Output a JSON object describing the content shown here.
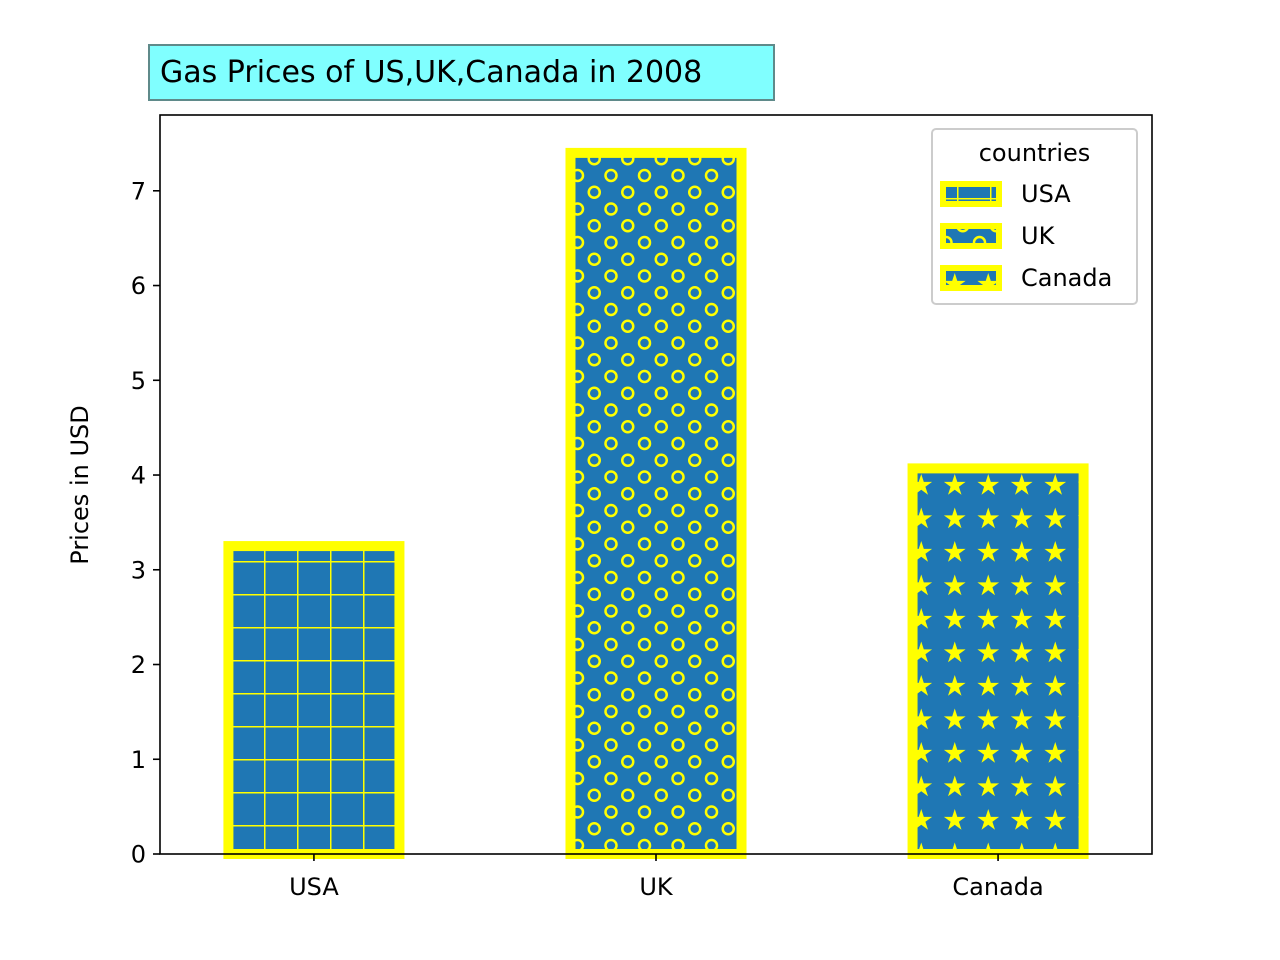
{
  "chart_data": {
    "type": "bar",
    "title": "Gas Prices of US,UK,Canada in 2008",
    "xlabel": "",
    "ylabel": "Prices in USD",
    "categories": [
      "USA",
      "UK",
      "Canada"
    ],
    "values": [
      3.25,
      7.4,
      4.07
    ],
    "ylim": [
      0,
      7.8
    ],
    "yticks": [
      "0",
      "1",
      "2",
      "3",
      "4",
      "5",
      "6",
      "7"
    ],
    "legend": {
      "title": "countries",
      "placement": "top-right",
      "entries": [
        "USA",
        "UK",
        "Canada"
      ]
    },
    "hatches": [
      "grid",
      "circles",
      "stars"
    ],
    "grid": false
  },
  "colors": {
    "bar_fill": "#1f77b4",
    "bar_edge": "#ffff00",
    "hatch": "#ffff00",
    "title_box_fill": "#80ffff",
    "title_box_edge": "#5f8a8a"
  }
}
